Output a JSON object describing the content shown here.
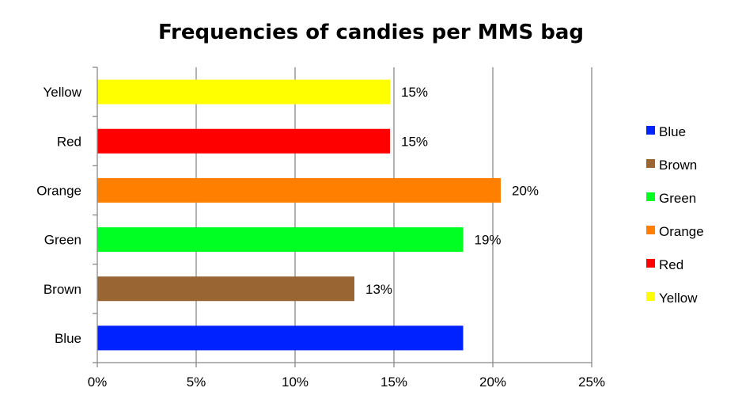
{
  "chart_data": {
    "type": "bar",
    "orientation": "horizontal",
    "title": "Frequencies of candies per MMS bag",
    "categories": [
      "Blue",
      "Brown",
      "Green",
      "Orange",
      "Red",
      "Yellow"
    ],
    "values": [
      18.5,
      13,
      18.5,
      20.4,
      14.8,
      14.8
    ],
    "data_labels": [
      "",
      "13%",
      "19%",
      "20%",
      "15%",
      "15%"
    ],
    "colors": [
      "#0022ff",
      "#996633",
      "#00ff22",
      "#ff8000",
      "#ff0000",
      "#ffff00"
    ],
    "xlim": [
      0,
      25
    ],
    "x_ticks": [
      0,
      5,
      10,
      15,
      20,
      25
    ],
    "x_tick_labels": [
      "0%",
      "5%",
      "10%",
      "15%",
      "20%",
      "25%"
    ],
    "grid": "vertical",
    "legend": {
      "position": "right",
      "entries": [
        "Blue",
        "Brown",
        "Green",
        "Orange",
        "Red",
        "Yellow"
      ]
    }
  }
}
